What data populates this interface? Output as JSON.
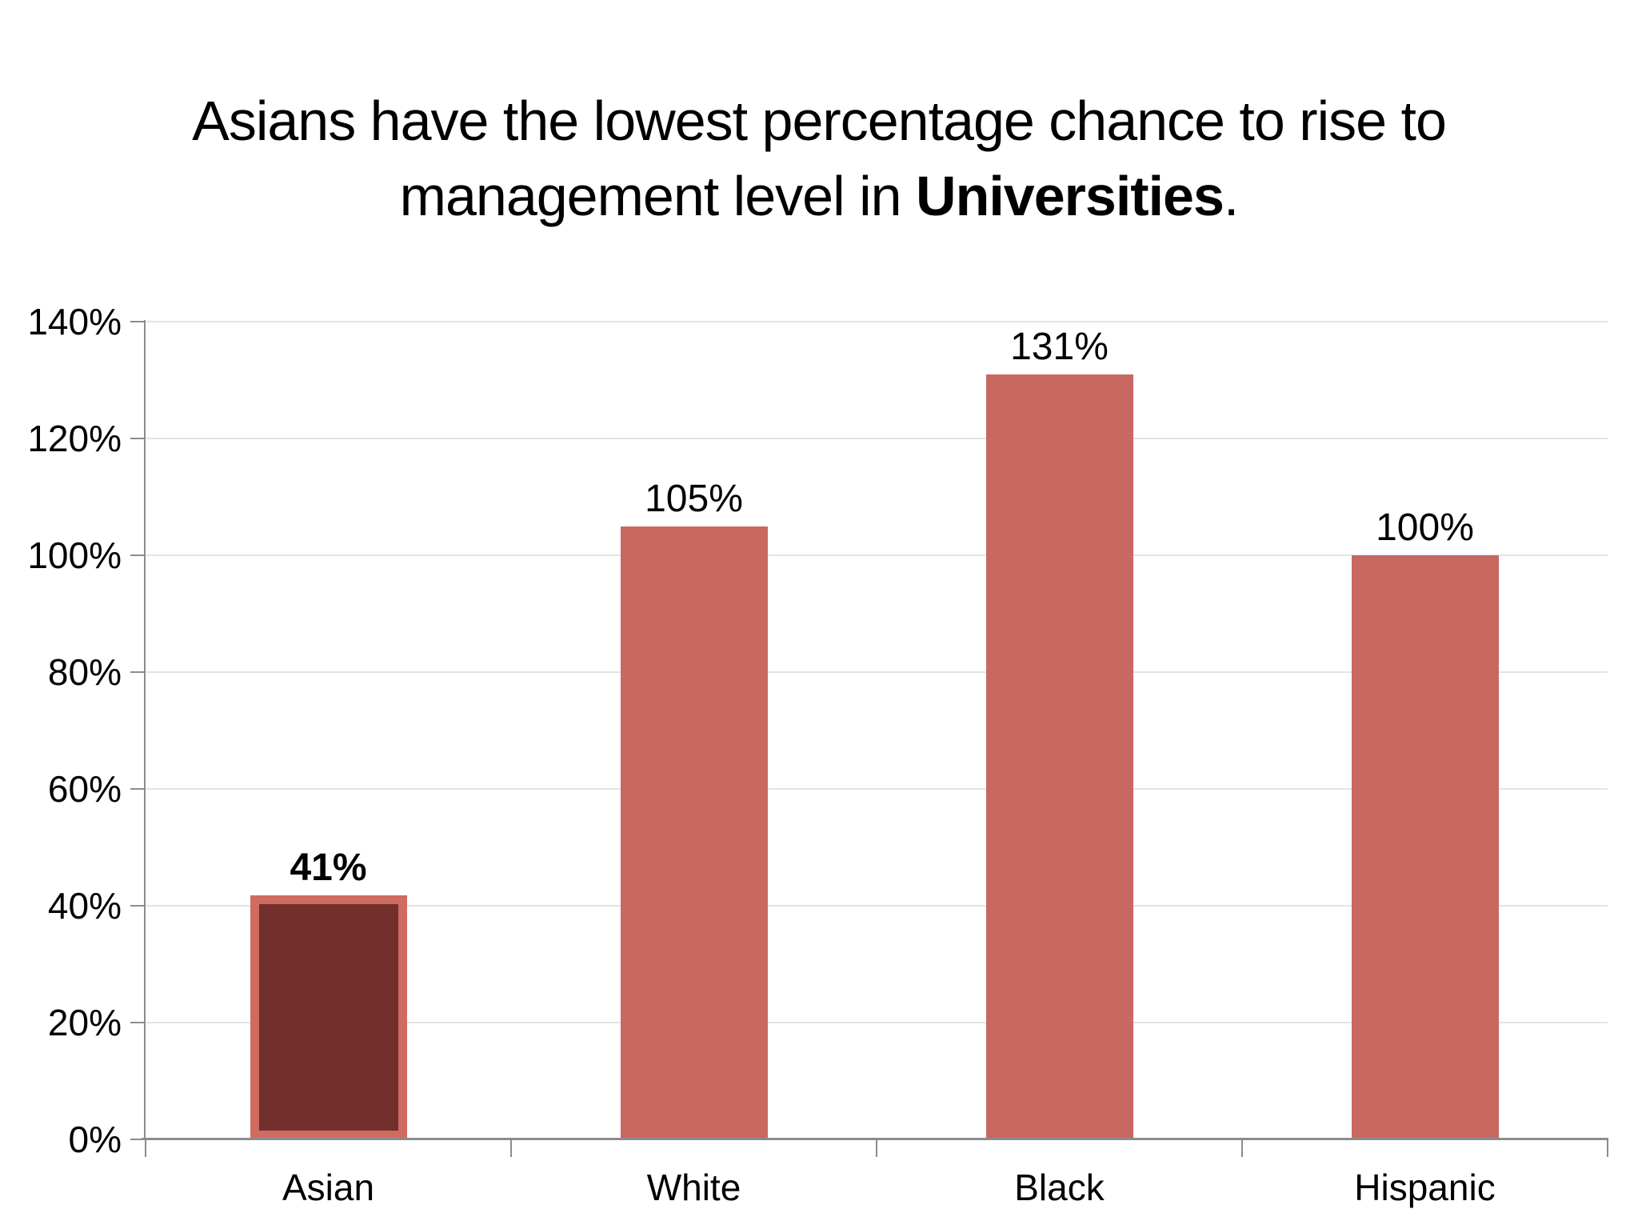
{
  "page": {
    "background": "#ffffff"
  },
  "chart": {
    "title": {
      "line1": "Asians have the lowest percentage chance to rise to",
      "line2_prefix": "management level in ",
      "line2_bold": "Universities",
      "line2_suffix": "."
    }
  },
  "chart_data": {
    "type": "bar",
    "title": "Asians have the lowest percentage chance to rise to management level in Universities.",
    "categories": [
      "Asian",
      "White",
      "Black",
      "Hispanic"
    ],
    "values": [
      41,
      105,
      131,
      100
    ],
    "data_labels": [
      "41%",
      "105%",
      "131%",
      "100%"
    ],
    "highlighted_category": "Asian",
    "xlabel": "",
    "ylabel": "",
    "ylim": [
      0,
      140
    ],
    "y_ticks": [
      {
        "value": 0,
        "label": "0%"
      },
      {
        "value": 20,
        "label": "20%"
      },
      {
        "value": 40,
        "label": "40%"
      },
      {
        "value": 60,
        "label": "60%"
      },
      {
        "value": 80,
        "label": "80%"
      },
      {
        "value": 100,
        "label": "100%"
      },
      {
        "value": 120,
        "label": "120%"
      },
      {
        "value": 140,
        "label": "140%"
      }
    ],
    "grid": "horizontal",
    "legend": "none",
    "colors": {
      "bar": "#c96761",
      "highlight_fill": "#722f2b",
      "highlight_border": "#cf6b60",
      "gridline": "#e3e3ea",
      "axis": "#8c8c8c",
      "text": "#000000"
    }
  }
}
